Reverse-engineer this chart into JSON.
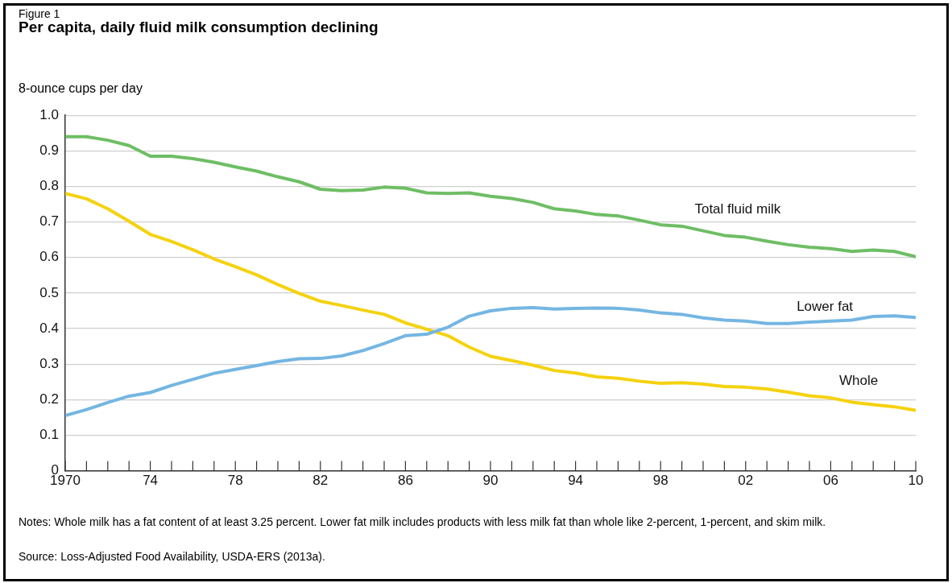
{
  "chart_data": {
    "type": "line",
    "title": "Per capita, daily fluid milk consumption declining",
    "ylabel": "8-ounce cups per day",
    "annotations": [
      "Figure 1",
      "Notes: Whole milk has a fat content of at least 3.25 percent. Lower fat milk includes products with less milk fat than whole like 2-percent, 1-percent, and skim milk.",
      "Source: Loss-Adjusted Food Availability, USDA-ERS (2013a)."
    ],
    "x": [
      1970,
      1971,
      1972,
      1973,
      1974,
      1975,
      1976,
      1977,
      1978,
      1979,
      1980,
      1981,
      1982,
      1983,
      1984,
      1985,
      1986,
      1987,
      1988,
      1989,
      1990,
      1991,
      1992,
      1993,
      1994,
      1995,
      1996,
      1997,
      1998,
      1999,
      2000,
      2001,
      2002,
      2003,
      2004,
      2005,
      2006,
      2007,
      2008,
      2009,
      2010
    ],
    "series": [
      {
        "name": "Total fluid milk",
        "color": "#6ebe64",
        "values": [
          0.94,
          0.94,
          0.93,
          0.915,
          0.885,
          0.885,
          0.878,
          0.868,
          0.855,
          0.843,
          0.827,
          0.813,
          0.792,
          0.788,
          0.79,
          0.798,
          0.795,
          0.782,
          0.78,
          0.782,
          0.772,
          0.766,
          0.755,
          0.737,
          0.731,
          0.721,
          0.717,
          0.705,
          0.692,
          0.688,
          0.675,
          0.662,
          0.657,
          0.646,
          0.636,
          0.629,
          0.625,
          0.617,
          0.621,
          0.617,
          0.602
        ]
      },
      {
        "name": "Lower fat",
        "color": "#74b6e2",
        "values": [
          0.155,
          0.172,
          0.192,
          0.21,
          0.22,
          0.24,
          0.257,
          0.274,
          0.285,
          0.296,
          0.307,
          0.315,
          0.316,
          0.323,
          0.338,
          0.358,
          0.38,
          0.384,
          0.404,
          0.435,
          0.45,
          0.457,
          0.459,
          0.455,
          0.457,
          0.458,
          0.457,
          0.452,
          0.444,
          0.44,
          0.43,
          0.424,
          0.421,
          0.414,
          0.414,
          0.418,
          0.421,
          0.424,
          0.434,
          0.436,
          0.431
        ]
      },
      {
        "name": "Whole",
        "color": "#f5d20f",
        "values": [
          0.78,
          0.765,
          0.737,
          0.702,
          0.665,
          0.645,
          0.622,
          0.596,
          0.574,
          0.551,
          0.524,
          0.499,
          0.477,
          0.465,
          0.452,
          0.44,
          0.416,
          0.398,
          0.38,
          0.348,
          0.322,
          0.31,
          0.297,
          0.282,
          0.275,
          0.264,
          0.26,
          0.252,
          0.246,
          0.248,
          0.244,
          0.237,
          0.235,
          0.23,
          0.221,
          0.211,
          0.205,
          0.193,
          0.186,
          0.18,
          0.17
        ]
      }
    ],
    "xlim": [
      1970,
      2010
    ],
    "xticks": [
      {
        "value": 1970,
        "label": "1970"
      },
      {
        "value": 1971,
        "label": null
      },
      {
        "value": 1972,
        "label": null
      },
      {
        "value": 1973,
        "label": null
      },
      {
        "value": 1974,
        "label": "74"
      },
      {
        "value": 1975,
        "label": null
      },
      {
        "value": 1976,
        "label": null
      },
      {
        "value": 1977,
        "label": null
      },
      {
        "value": 1978,
        "label": "78"
      },
      {
        "value": 1979,
        "label": null
      },
      {
        "value": 1980,
        "label": null
      },
      {
        "value": 1981,
        "label": null
      },
      {
        "value": 1982,
        "label": "82"
      },
      {
        "value": 1983,
        "label": null
      },
      {
        "value": 1984,
        "label": null
      },
      {
        "value": 1985,
        "label": null
      },
      {
        "value": 1986,
        "label": "86"
      },
      {
        "value": 1987,
        "label": null
      },
      {
        "value": 1988,
        "label": null
      },
      {
        "value": 1989,
        "label": null
      },
      {
        "value": 1990,
        "label": "90"
      },
      {
        "value": 1991,
        "label": null
      },
      {
        "value": 1992,
        "label": null
      },
      {
        "value": 1993,
        "label": null
      },
      {
        "value": 1994,
        "label": "94"
      },
      {
        "value": 1995,
        "label": null
      },
      {
        "value": 1996,
        "label": null
      },
      {
        "value": 1997,
        "label": null
      },
      {
        "value": 1998,
        "label": "98"
      },
      {
        "value": 1999,
        "label": null
      },
      {
        "value": 2000,
        "label": null
      },
      {
        "value": 2001,
        "label": null
      },
      {
        "value": 2002,
        "label": "02"
      },
      {
        "value": 2003,
        "label": null
      },
      {
        "value": 2004,
        "label": null
      },
      {
        "value": 2005,
        "label": null
      },
      {
        "value": 2006,
        "label": "06"
      },
      {
        "value": 2007,
        "label": null
      },
      {
        "value": 2008,
        "label": null
      },
      {
        "value": 2009,
        "label": null
      },
      {
        "value": 2010,
        "label": "10"
      }
    ],
    "ylim": [
      0,
      1
    ],
    "yticks": [
      0,
      0.1,
      0.2,
      0.3,
      0.4,
      0.5,
      0.6,
      0.7,
      0.8,
      0.9,
      {
        "value": 1,
        "label": "1.0"
      }
    ],
    "grid": "y",
    "legend": false,
    "marker": "none",
    "line_style": "solid"
  }
}
